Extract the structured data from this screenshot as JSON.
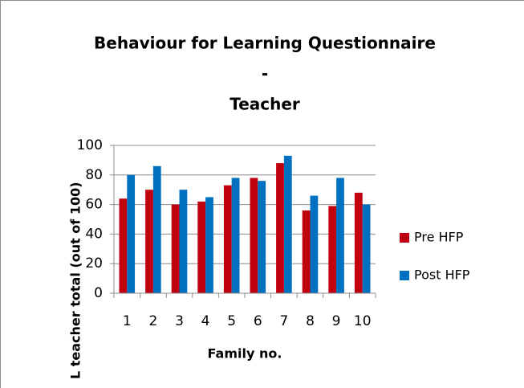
{
  "chart_data": {
    "type": "bar",
    "title": [
      "Behaviour for Learning Questionnaire",
      "-",
      "Teacher"
    ],
    "x_label": "Family no.",
    "y_label": "L teacher total (out of 100)",
    "categories": [
      "1",
      "2",
      "3",
      "4",
      "5",
      "6",
      "7",
      "8",
      "9",
      "10"
    ],
    "series": [
      {
        "name": "Pre HFP",
        "color": "#c0000f",
        "values": [
          64,
          70,
          60,
          62,
          73,
          78,
          88,
          56,
          59,
          68
        ]
      },
      {
        "name": "Post HFP",
        "color": "#0070c0",
        "values": [
          80,
          86,
          70,
          65,
          78,
          76,
          93,
          66,
          78,
          60
        ]
      }
    ],
    "ylim": [
      0,
      100
    ],
    "yticks": [
      0,
      20,
      40,
      60,
      80,
      100
    ],
    "grid": true,
    "legend": "right"
  }
}
